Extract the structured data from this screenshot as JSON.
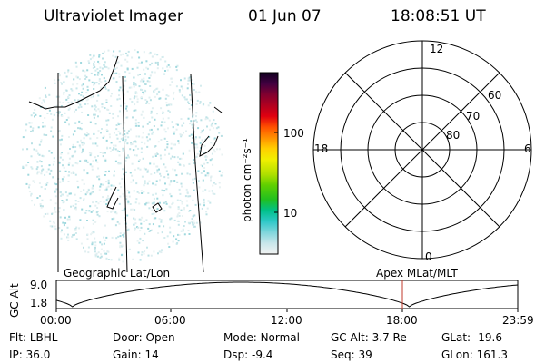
{
  "header": {
    "title": "Ultraviolet Imager",
    "date": "01 Jun 07",
    "time": "18:08:51 UT"
  },
  "colorbar": {
    "unit_label": "photon cm⁻²s⁻¹",
    "ticks": [
      "100",
      "10"
    ]
  },
  "polar_plot": {
    "mlt_labels": {
      "top": "12",
      "left": "18",
      "right": "6",
      "bottom": "0"
    },
    "lat_labels": [
      "60",
      "70",
      "80"
    ]
  },
  "orbit_panel": {
    "left_title": "Geographic Lat/Lon",
    "right_title": "Apex MLat/MLT",
    "y_axis_label": "GC Alt",
    "y_ticks": [
      "9.0",
      "1.8"
    ],
    "x_ticks": [
      "00:00",
      "06:00",
      "12:00",
      "18:00",
      "23:59"
    ],
    "marker_color": "#c0392b"
  },
  "status": {
    "row1": [
      {
        "label": "Flt:",
        "value": "LBHL"
      },
      {
        "label": "Door:",
        "value": "Open"
      },
      {
        "label": "Mode:",
        "value": "Normal"
      },
      {
        "label": "GC Alt:",
        "value": "3.7 Re"
      },
      {
        "label": "GLat:",
        "value": "-19.6"
      }
    ],
    "row2": [
      {
        "label": "IP:",
        "value": "36.0"
      },
      {
        "label": "Gain:",
        "value": "14"
      },
      {
        "label": "Dsp:",
        "value": "-9.4"
      },
      {
        "label": "Seq:",
        "value": "39"
      },
      {
        "label": "GLon:",
        "value": "161.3"
      }
    ]
  }
}
